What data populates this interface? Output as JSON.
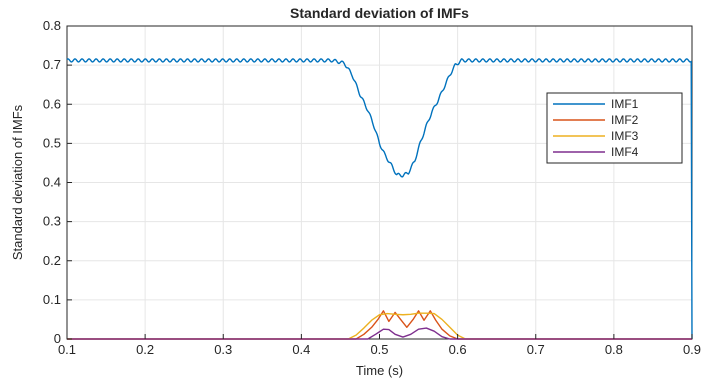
{
  "chart_data": {
    "type": "line",
    "title": "Standard deviation of IMFs",
    "xlabel": "Time (s)",
    "ylabel": "Standard deviation of IMFs",
    "xlim": [
      0.1,
      0.9
    ],
    "ylim": [
      0,
      0.8
    ],
    "xticks": [
      "0.1",
      "0.2",
      "0.3",
      "0.4",
      "0.5",
      "0.6",
      "0.7",
      "0.8",
      "0.9"
    ],
    "yticks": [
      "0",
      "0.1",
      "0.2",
      "0.3",
      "0.4",
      "0.5",
      "0.6",
      "0.7",
      "0.8"
    ],
    "grid": true,
    "legend_position": "right",
    "series": [
      {
        "name": "IMF1",
        "color": "#0072BD",
        "points": [
          [
            0.1,
            0.712
          ],
          [
            0.44,
            0.712
          ],
          [
            0.455,
            0.705
          ],
          [
            0.465,
            0.675
          ],
          [
            0.475,
            0.625
          ],
          [
            0.485,
            0.585
          ],
          [
            0.492,
            0.55
          ],
          [
            0.5,
            0.5
          ],
          [
            0.507,
            0.47
          ],
          [
            0.515,
            0.445
          ],
          [
            0.522,
            0.42
          ],
          [
            0.53,
            0.418
          ],
          [
            0.537,
            0.425
          ],
          [
            0.545,
            0.455
          ],
          [
            0.552,
            0.5
          ],
          [
            0.56,
            0.545
          ],
          [
            0.567,
            0.58
          ],
          [
            0.575,
            0.61
          ],
          [
            0.583,
            0.645
          ],
          [
            0.59,
            0.675
          ],
          [
            0.597,
            0.7
          ],
          [
            0.605,
            0.712
          ],
          [
            0.9,
            0.712
          ]
        ],
        "ripple_amplitude": 0.004
      },
      {
        "name": "IMF2",
        "color": "#D95319",
        "points": [
          [
            0.1,
            0.0
          ],
          [
            0.47,
            0.0
          ],
          [
            0.48,
            0.012
          ],
          [
            0.49,
            0.03
          ],
          [
            0.498,
            0.05
          ],
          [
            0.505,
            0.072
          ],
          [
            0.512,
            0.045
          ],
          [
            0.52,
            0.068
          ],
          [
            0.527,
            0.05
          ],
          [
            0.535,
            0.03
          ],
          [
            0.543,
            0.05
          ],
          [
            0.55,
            0.072
          ],
          [
            0.557,
            0.048
          ],
          [
            0.565,
            0.072
          ],
          [
            0.572,
            0.048
          ],
          [
            0.58,
            0.025
          ],
          [
            0.59,
            0.008
          ],
          [
            0.6,
            0.0
          ],
          [
            0.9,
            0.0
          ]
        ]
      },
      {
        "name": "IMF3",
        "color": "#EDB120",
        "points": [
          [
            0.1,
            0.0
          ],
          [
            0.46,
            0.0
          ],
          [
            0.47,
            0.01
          ],
          [
            0.48,
            0.028
          ],
          [
            0.49,
            0.048
          ],
          [
            0.5,
            0.062
          ],
          [
            0.51,
            0.065
          ],
          [
            0.52,
            0.063
          ],
          [
            0.53,
            0.062
          ],
          [
            0.54,
            0.063
          ],
          [
            0.55,
            0.066
          ],
          [
            0.56,
            0.066
          ],
          [
            0.57,
            0.065
          ],
          [
            0.58,
            0.05
          ],
          [
            0.59,
            0.03
          ],
          [
            0.6,
            0.01
          ],
          [
            0.61,
            0.0
          ],
          [
            0.9,
            0.0
          ]
        ]
      },
      {
        "name": "IMF4",
        "color": "#7E2F8E",
        "points": [
          [
            0.1,
            0.0
          ],
          [
            0.485,
            0.0
          ],
          [
            0.495,
            0.012
          ],
          [
            0.505,
            0.025
          ],
          [
            0.512,
            0.024
          ],
          [
            0.52,
            0.012
          ],
          [
            0.53,
            0.005
          ],
          [
            0.54,
            0.012
          ],
          [
            0.55,
            0.025
          ],
          [
            0.56,
            0.028
          ],
          [
            0.57,
            0.02
          ],
          [
            0.58,
            0.006
          ],
          [
            0.59,
            0.0
          ],
          [
            0.9,
            0.0
          ]
        ]
      }
    ]
  }
}
